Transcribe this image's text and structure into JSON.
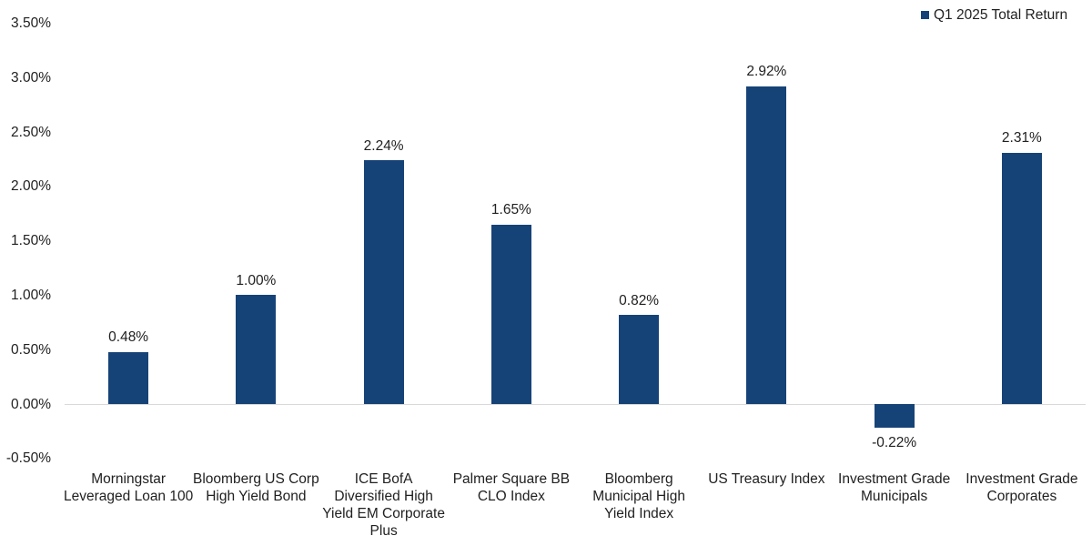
{
  "colors": {
    "bar": "#164377",
    "axis_line": "#D9D9D9",
    "text": "#212121",
    "background": "#FFFFFF"
  },
  "legend": {
    "label": "Q1 2025 Total Return",
    "marker": "square",
    "marker_color": "#164377"
  },
  "chart_data": {
    "type": "bar",
    "title": "",
    "xlabel": "",
    "ylabel": "",
    "series_name": "Q1 2025 Total Return",
    "categories": [
      "Morningstar Leveraged Loan 100",
      "Bloomberg US Corp High Yield Bond",
      "ICE BofA Diversified High Yield EM Corporate Plus",
      "Palmer Square BB CLO Index",
      "Bloomberg Municipal High Yield Index",
      "US Treasury Index",
      "Investment Grade Municipals",
      "Investment Grade Corporates"
    ],
    "category_lines": [
      [
        "Morningstar",
        "Leveraged Loan 100"
      ],
      [
        "Bloomberg US Corp",
        "High Yield Bond"
      ],
      [
        "ICE BofA",
        "Diversified High",
        "Yield EM Corporate",
        "Plus"
      ],
      [
        "Palmer Square BB",
        "CLO Index"
      ],
      [
        "Bloomberg",
        "Municipal High",
        "Yield Index"
      ],
      [
        "US Treasury Index"
      ],
      [
        "Investment Grade",
        "Municipals"
      ],
      [
        "Investment Grade",
        "Corporates"
      ]
    ],
    "values": [
      0.48,
      1.0,
      2.24,
      1.65,
      0.82,
      2.92,
      -0.22,
      2.31
    ],
    "value_labels": [
      "0.48%",
      "1.00%",
      "2.24%",
      "1.65%",
      "0.82%",
      "2.92%",
      "-0.22%",
      "2.31%"
    ],
    "y_ticks": [
      {
        "value": 3.5,
        "label": "3.50%"
      },
      {
        "value": 3.0,
        "label": "3.00%"
      },
      {
        "value": 2.5,
        "label": "2.50%"
      },
      {
        "value": 2.0,
        "label": "2.00%"
      },
      {
        "value": 1.5,
        "label": "1.50%"
      },
      {
        "value": 1.0,
        "label": "1.00%"
      },
      {
        "value": 0.5,
        "label": "0.50%"
      },
      {
        "value": 0.0,
        "label": "0.00%"
      },
      {
        "value": -0.5,
        "label": "-0.50%"
      }
    ],
    "ylim": [
      -0.5,
      3.5
    ],
    "grid": false,
    "legend_position": "top-right"
  }
}
